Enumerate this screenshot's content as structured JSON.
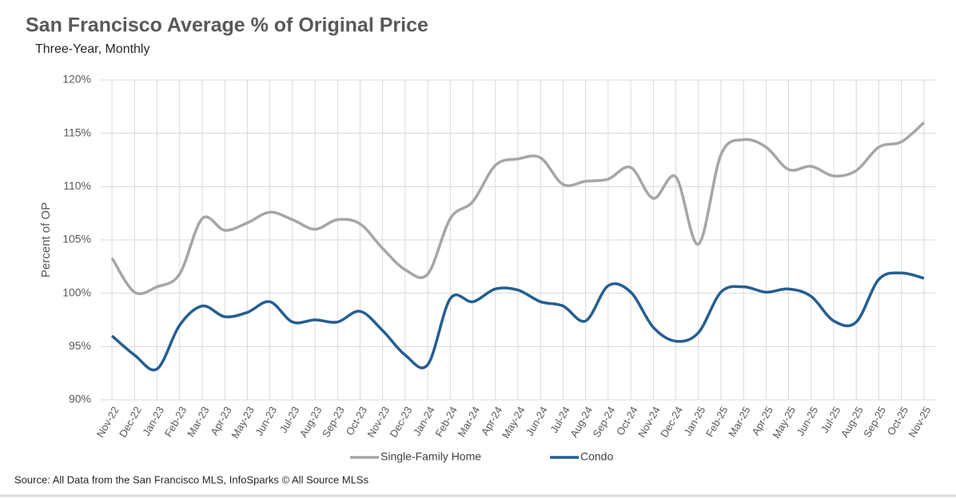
{
  "chart_data": {
    "type": "line",
    "title": "San Francisco Average % of Original Price",
    "subtitle": "Three-Year, Monthly",
    "y_label": "Percent of OP",
    "source": "Source: All Data from the San Francisco MLS, InfoSparks © All Source MLSs",
    "categories": [
      "Nov-22",
      "Dec-22",
      "Jan-23",
      "Feb-23",
      "Mar-23",
      "Apr-23",
      "May-23",
      "Jun-23",
      "Jul-23",
      "Aug-23",
      "Sep-23",
      "Oct-23",
      "Nov-23",
      "Dec-23",
      "Jan-24",
      "Feb-24",
      "Mar-24",
      "Apr-24",
      "May-24",
      "Jun-24",
      "Jul-24",
      "Aug-24",
      "Sep-24",
      "Oct-24",
      "Nov-24",
      "Dec-24",
      "Jan-25",
      "Feb-25",
      "Mar-25",
      "Apr-25",
      "May-25",
      "Jun-25",
      "Jul-25",
      "Aug-25",
      "Sep-25",
      "Oct-25",
      "Nov-25"
    ],
    "series": [
      {
        "name": "Single-Family Home",
        "color": "#a6a6a6",
        "values": [
          103.3,
          100.1,
          100.6,
          101.8,
          107.0,
          105.9,
          106.6,
          107.6,
          106.9,
          106.0,
          106.9,
          106.5,
          104.2,
          102.2,
          101.8,
          107.0,
          108.6,
          112.0,
          112.6,
          112.7,
          110.2,
          110.5,
          110.7,
          111.8,
          108.9,
          110.9,
          104.6,
          113.0,
          114.4,
          113.7,
          111.6,
          111.9,
          111.0,
          111.5,
          113.7,
          114.2,
          116.0
        ]
      },
      {
        "name": "Condo",
        "color": "#255e91",
        "values": [
          96.0,
          94.2,
          92.9,
          97.0,
          98.8,
          97.8,
          98.2,
          99.2,
          97.3,
          97.5,
          97.3,
          98.3,
          96.5,
          94.2,
          93.3,
          99.5,
          99.2,
          100.4,
          100.3,
          99.2,
          98.8,
          97.4,
          100.7,
          100.1,
          96.8,
          95.5,
          96.3,
          100.1,
          100.6,
          100.1,
          100.4,
          99.7,
          97.4,
          97.3,
          101.3,
          101.9,
          101.4
        ]
      }
    ],
    "ylim": [
      90,
      120
    ],
    "yticks": [
      {
        "value": 90,
        "label": "90%"
      },
      {
        "value": 95,
        "label": "95%"
      },
      {
        "value": 100,
        "label": "100%"
      },
      {
        "value": 105,
        "label": "105%"
      },
      {
        "value": 110,
        "label": "110%"
      },
      {
        "value": 115,
        "label": "115%"
      },
      {
        "value": 120,
        "label": "120%"
      }
    ],
    "grid": true,
    "legend": "bottom"
  }
}
